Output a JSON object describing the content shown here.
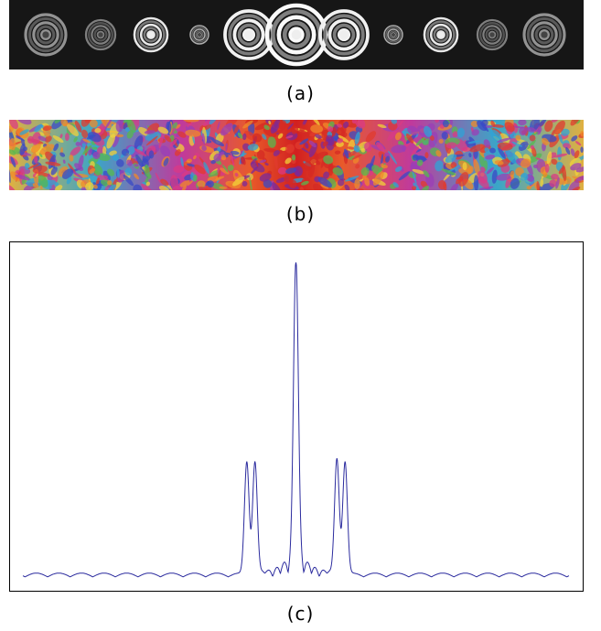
{
  "figure": {
    "panels": [
      {
        "id": "a",
        "caption": "(a)",
        "kind": "intensity-map"
      },
      {
        "id": "b",
        "caption": "(b)",
        "kind": "phase-map"
      },
      {
        "id": "c",
        "caption": "(c)",
        "kind": "line-profile"
      }
    ]
  },
  "chart_data": {
    "type": "line",
    "title": "",
    "xlabel": "",
    "ylabel": "",
    "grid": false,
    "line_color": "#2b2b9e",
    "xlim": [
      -1,
      1
    ],
    "ylim": [
      0,
      1
    ],
    "peaks": [
      {
        "x": 0.0,
        "y": 1.0
      },
      {
        "x": -0.18,
        "y": 0.36
      },
      {
        "x": -0.15,
        "y": 0.36
      },
      {
        "x": 0.15,
        "y": 0.37
      },
      {
        "x": 0.18,
        "y": 0.36
      }
    ],
    "background_level": 0.03
  }
}
